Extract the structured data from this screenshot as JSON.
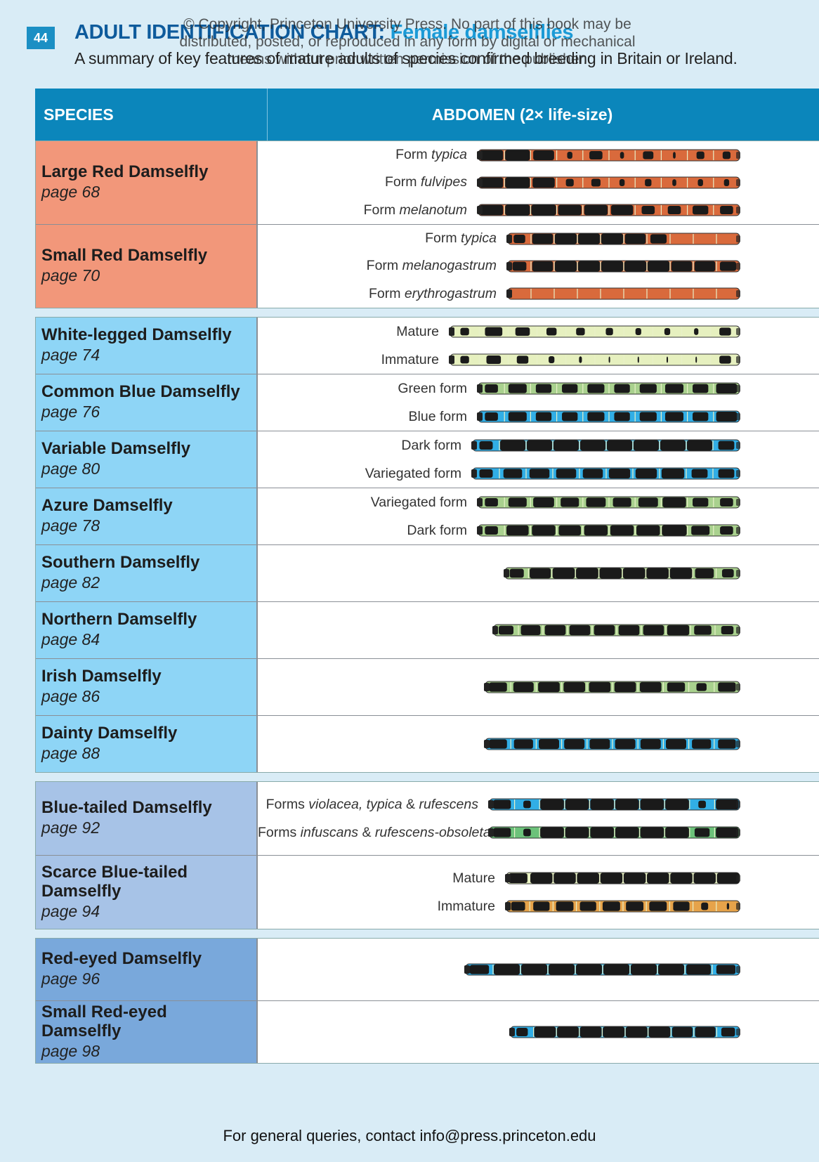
{
  "page": {
    "number": "44",
    "title_main": "ADULT IDENTIFICATION CHART: ",
    "title_highlight": "Female damselflies",
    "subtitle": "A summary of key features of mature adults of species confirmed breeding in Britain or Ireland.",
    "watermark_line1": "© Copyright, Princeton University Press. No part of this book may be",
    "watermark_line2": "distributed, posted, or reproduced in any form by digital or mechanical",
    "watermark_line3": "means without prior written permission of the publisher.",
    "footer": "For general queries, contact info@press.princeton.edu"
  },
  "chart": {
    "header_species": "SPECIES",
    "header_abdomen": "ABDOMEN (2× life-size)"
  },
  "colors": {
    "red_group": "#f2977a",
    "light_blue_group": "#8ed5f6",
    "mid_blue_group": "#a7c3e7",
    "dark_blue_group": "#79a8db",
    "header": "#0b86bb"
  },
  "groups": [
    {
      "cls": "g-red",
      "species": [
        {
          "name": "Large Red Damselfly",
          "page": "page 68",
          "label_w": 290,
          "forms": [
            {
              "pre": "Form ",
              "it": "typica",
              "post": "",
              "base": "#d96a3c",
              "dark": "#1a1a1a",
              "style": "red1",
              "start": 310
            },
            {
              "pre": "Form ",
              "it": "fulvipes",
              "post": "",
              "base": "#d96a3c",
              "dark": "#1a1a1a",
              "style": "red2",
              "start": 310
            },
            {
              "pre": "Form ",
              "it": "melanotum",
              "post": "",
              "base": "#d96a3c",
              "dark": "#1a1a1a",
              "style": "red3",
              "start": 310
            }
          ]
        },
        {
          "name": "Small Red Damselfly",
          "page": "page 70",
          "label_w": 330,
          "forms": [
            {
              "pre": "Form ",
              "it": "typica",
              "post": "",
              "base": "#d96a3c",
              "dark": "#1a1a1a",
              "style": "sred1",
              "start": 352
            },
            {
              "pre": "Form ",
              "it": "melanogastrum",
              "post": "",
              "base": "#d96a3c",
              "dark": "#1a1a1a",
              "style": "sred2",
              "start": 352
            },
            {
              "pre": "Form ",
              "it": "erythrogastrum",
              "post": "",
              "base": "#d96a3c",
              "dark": "#1a1a1a",
              "style": "sred3",
              "start": 352
            }
          ]
        }
      ]
    },
    {
      "cls": "g-light",
      "species": [
        {
          "name": "White-legged Damselfly",
          "page": "page 74",
          "label_w": 272,
          "forms": [
            {
              "pre": "Mature",
              "it": "",
              "post": "",
              "base": "#e6f0bf",
              "dark": "#1a1a1a",
              "style": "wl1",
              "start": 270
            },
            {
              "pre": "Immature",
              "it": "",
              "post": "",
              "base": "#e6f0bf",
              "dark": "#1a1a1a",
              "style": "wl2",
              "start": 270
            }
          ]
        },
        {
          "name": "Common Blue Damselfly",
          "page": "page 76",
          "label_w": 292,
          "forms": [
            {
              "pre": "Green form",
              "it": "",
              "post": "",
              "base": "#a9d18e",
              "dark": "#1a1a1a",
              "style": "cb",
              "start": 310
            },
            {
              "pre": "Blue form",
              "it": "",
              "post": "",
              "base": "#31aee6",
              "dark": "#1a1a1a",
              "style": "cb",
              "start": 310
            }
          ]
        },
        {
          "name": "Variable Damselfly",
          "page": "page 80",
          "label_w": 294,
          "forms": [
            {
              "pre": "Dark form",
              "it": "",
              "post": "",
              "base": "#31aee6",
              "dark": "#1a1a1a",
              "style": "var1",
              "start": 302
            },
            {
              "pre": "Variegated form",
              "it": "",
              "post": "",
              "base": "#31aee6",
              "dark": "#1a1a1a",
              "style": "var2",
              "start": 302
            }
          ]
        },
        {
          "name": "Azure Damselfly",
          "page": "page 78",
          "label_w": 304,
          "forms": [
            {
              "pre": "Variegated form",
              "it": "",
              "post": "",
              "base": "#a9d18e",
              "dark": "#1a1a1a",
              "style": "az",
              "start": 310
            },
            {
              "pre": "Dark form",
              "it": "",
              "post": "",
              "base": "#a9d18e",
              "dark": "#1a1a1a",
              "style": "az2",
              "start": 310
            }
          ]
        },
        {
          "name": "Southern Damselfly",
          "page": "page 82",
          "label_w": 0,
          "forms": [
            {
              "pre": "",
              "it": "",
              "post": "",
              "base": "#a9d18e",
              "dark": "#1a1a1a",
              "style": "sd",
              "start": 348
            }
          ]
        },
        {
          "name": "Northern Damselfly",
          "page": "page 84",
          "label_w": 0,
          "forms": [
            {
              "pre": "",
              "it": "",
              "post": "",
              "base": "#a9d18e",
              "dark": "#1a1a1a",
              "style": "nd",
              "start": 332
            }
          ]
        },
        {
          "name": "Irish Damselfly",
          "page": "page 86",
          "label_w": 0,
          "forms": [
            {
              "pre": "",
              "it": "",
              "post": "",
              "base": "#a9d18e",
              "dark": "#1a1a1a",
              "style": "ir",
              "start": 320
            }
          ]
        },
        {
          "name": "Dainty Damselfly",
          "page": "page 88",
          "label_w": 0,
          "forms": [
            {
              "pre": "",
              "it": "",
              "post": "",
              "base": "#31aee6",
              "dark": "#1a1a1a",
              "style": "dd",
              "start": 320
            }
          ]
        }
      ]
    },
    {
      "cls": "g-mid",
      "species": [
        {
          "name": "Blue-tailed Damselfly",
          "page": "page 92",
          "label_w": 320,
          "forms": [
            {
              "pre": "Forms ",
              "it": "violacea, typica",
              "post": " & ",
              "it2": "rufescens",
              "base": "#31aee6",
              "dark": "#1a1a1a",
              "style": "bt1",
              "start": 326
            },
            {
              "pre": "Forms ",
              "it": "infuscans",
              "post": " & ",
              "it2": "rufescens-obsoleta",
              "base": "#6cc27a",
              "dark": "#1a1a1a",
              "style": "bt2",
              "start": 326
            }
          ]
        },
        {
          "name": "Scarce Blue-tailed Damselfly",
          "page": "page 94",
          "label_w": 320,
          "forms": [
            {
              "pre": "Mature",
              "it": "",
              "post": "",
              "base": "#e6f0bf",
              "dark": "#1a1a1a",
              "style": "sbt1",
              "start": 350
            },
            {
              "pre": "Immature",
              "it": "",
              "post": "",
              "base": "#e6a34a",
              "dark": "#1a1a1a",
              "style": "sbt2",
              "start": 350
            }
          ]
        }
      ]
    },
    {
      "cls": "g-dark",
      "species": [
        {
          "name": "Red-eyed Damselfly",
          "page": "page 96",
          "label_w": 0,
          "forms": [
            {
              "pre": "",
              "it": "",
              "post": "",
              "base": "#31aee6",
              "dark": "#1a1a1a",
              "style": "re",
              "start": 292
            }
          ]
        },
        {
          "name": "Small Red-eyed Damselfly",
          "page": "page 98",
          "label_w": 0,
          "forms": [
            {
              "pre": "",
              "it": "",
              "post": "",
              "base": "#31aee6",
              "dark": "#1a1a1a",
              "style": "sre",
              "start": 356
            }
          ]
        }
      ]
    }
  ]
}
